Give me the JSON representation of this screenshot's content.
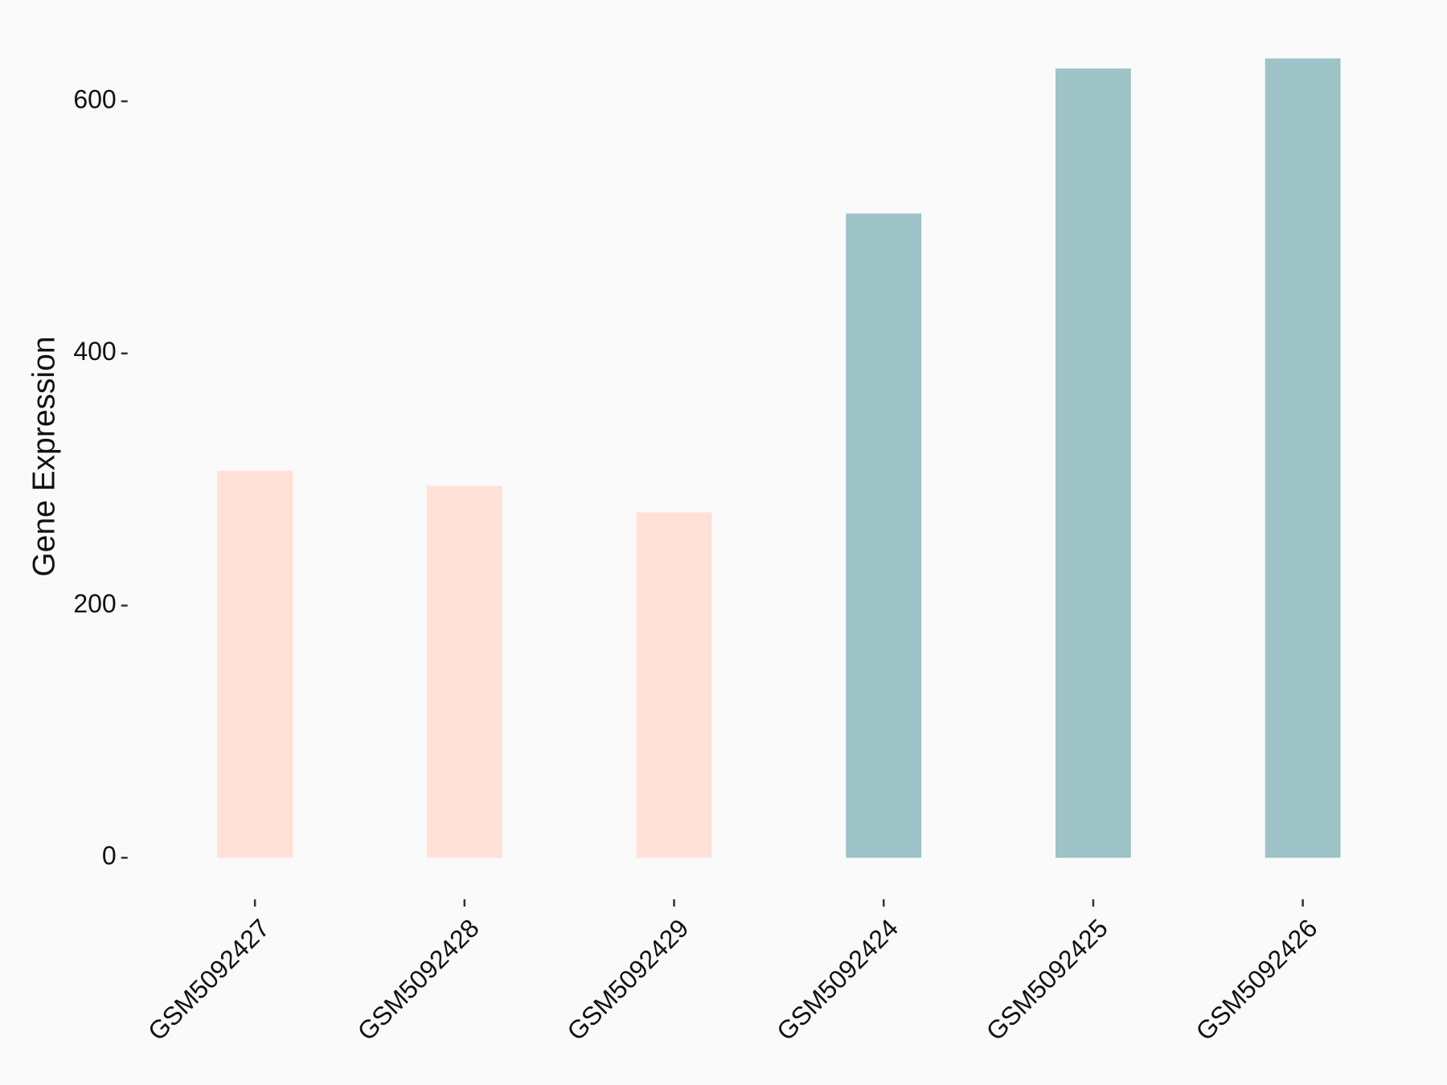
{
  "chart_data": {
    "type": "bar",
    "y_label": "Gene Expression",
    "categories": [
      "GSM5092427",
      "GSM5092428",
      "GSM5092429",
      "GSM5092424",
      "GSM5092425",
      "GSM5092426"
    ],
    "values": [
      307,
      295,
      274,
      511,
      626,
      634
    ],
    "colors": [
      "#ffe1d8",
      "#ffe1d8",
      "#ffe1d8",
      "#9dc3c7",
      "#9dc3c7",
      "#9dc3c7"
    ],
    "ylim": [
      -31.7,
      665.7
    ],
    "yticks": [
      0,
      200,
      400,
      600
    ]
  }
}
